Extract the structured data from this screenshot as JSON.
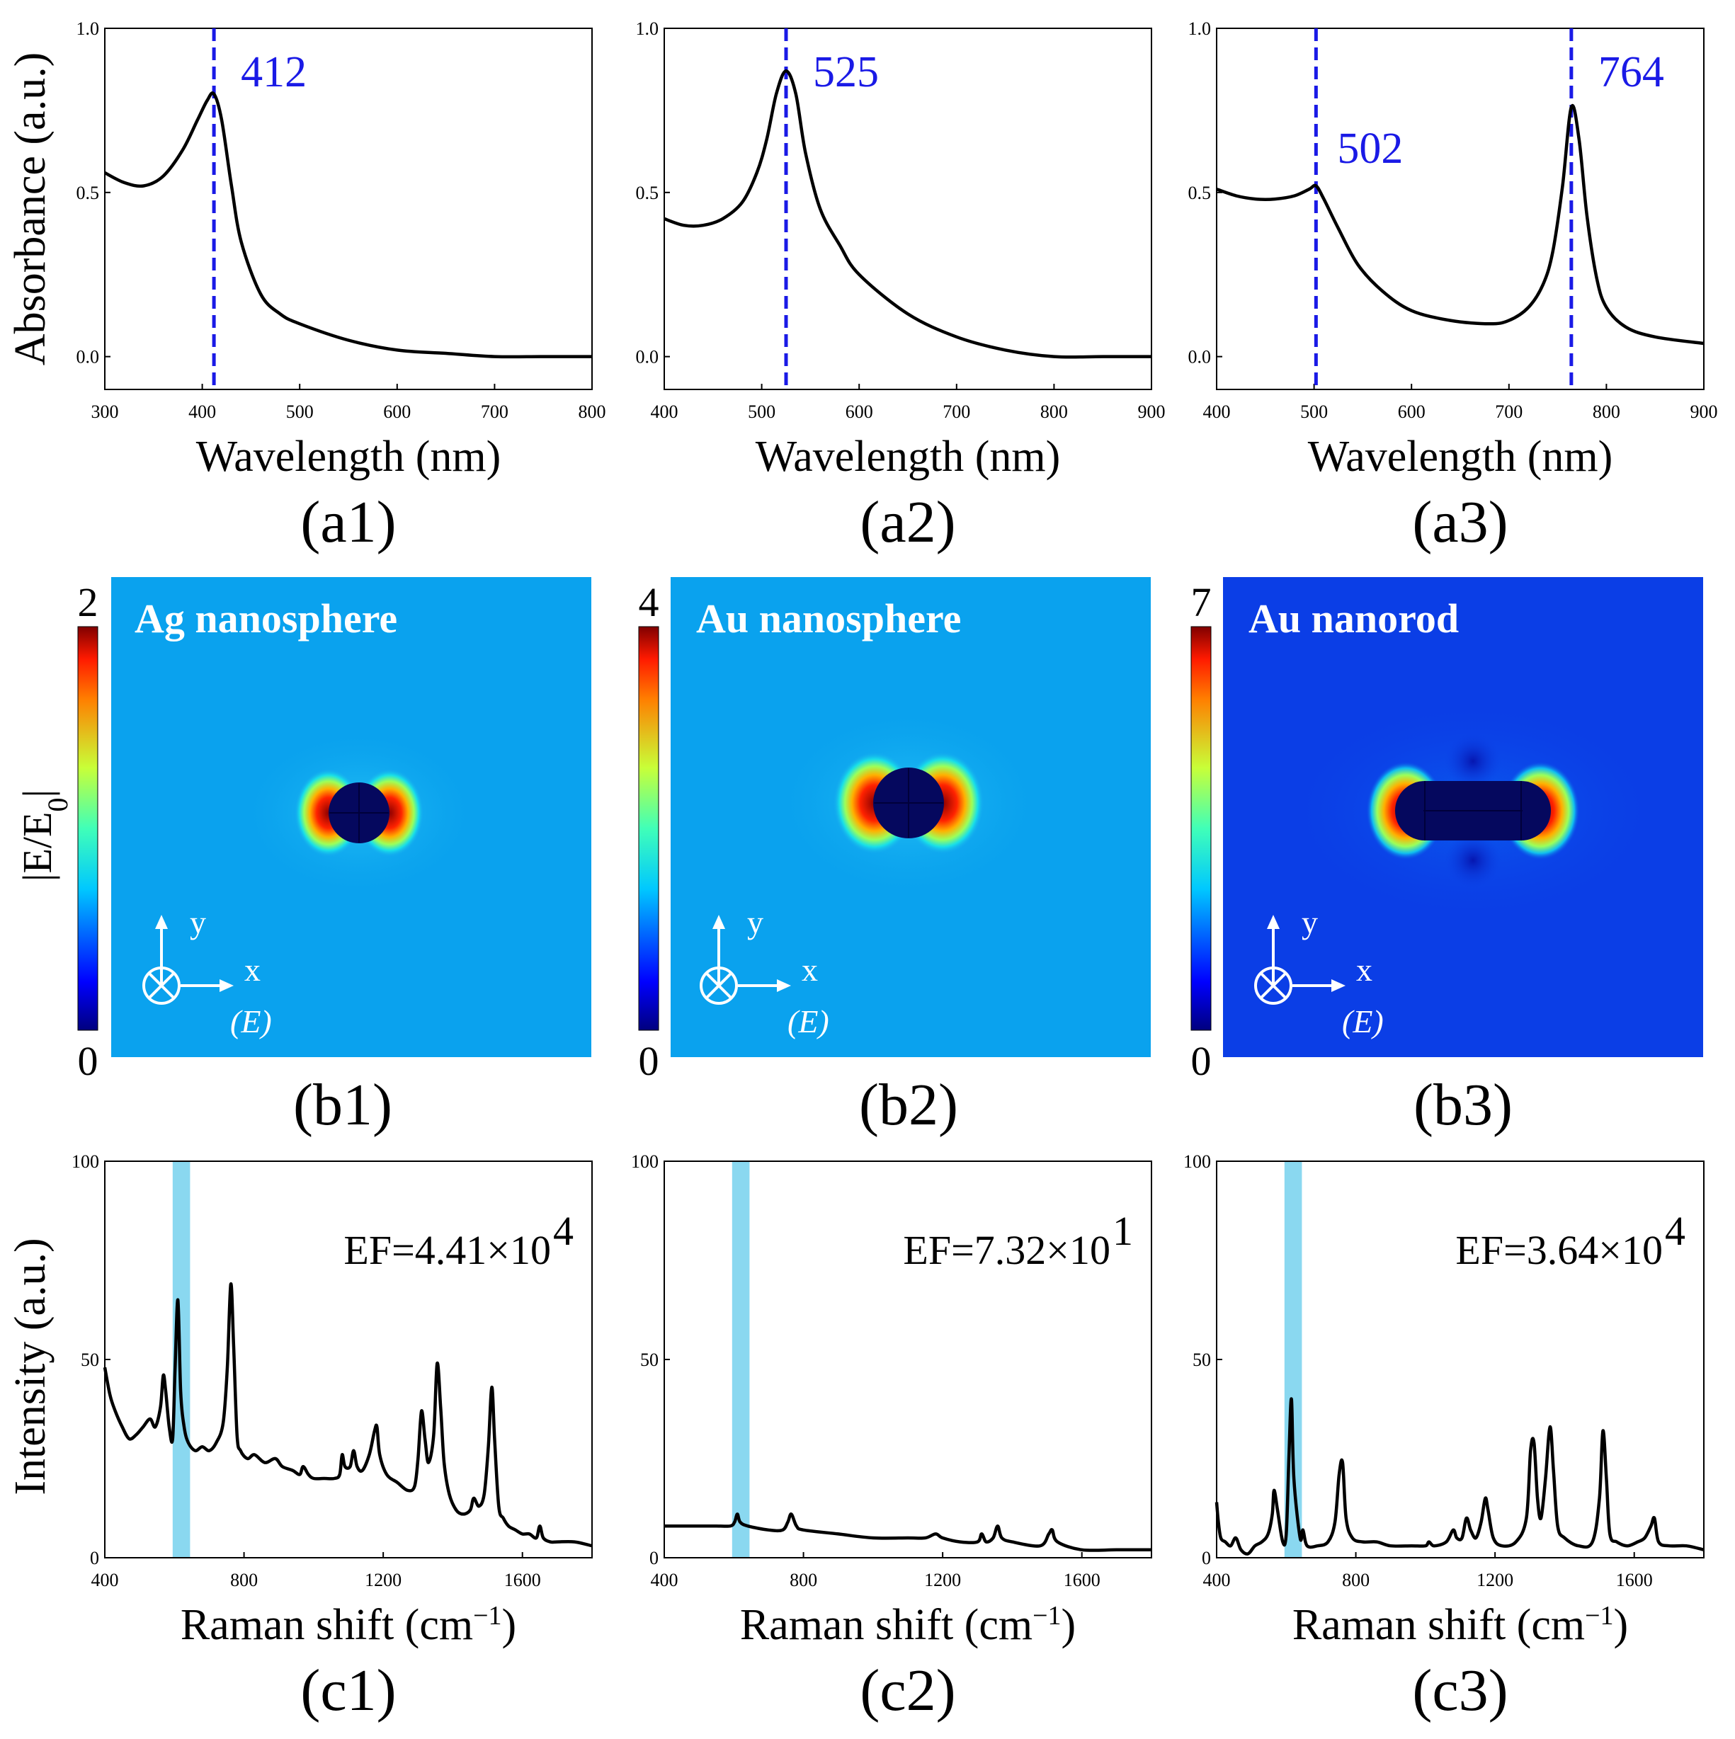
{
  "colors": {
    "peak_marker": "#1a1ae6",
    "band": "#8ad8f0",
    "curve": "#000000",
    "light_bg": "#0aa2ee",
    "dark_bg": "#0b3ee6"
  },
  "chart_data": [
    {
      "id": "a1",
      "type": "line",
      "panel_label": "(a1)",
      "xlabel": "Wavelength  (nm)",
      "ylabel": "Absorbance (a.u.)",
      "xlim": [
        300,
        800
      ],
      "ylim": [
        -0.1,
        1.0
      ],
      "xticks": [
        "300",
        "400",
        "500",
        "600",
        "700",
        "800"
      ],
      "yticks": [
        "0.0",
        "0.5",
        "1.0"
      ],
      "peaks": [
        {
          "x": 412,
          "label": "412"
        }
      ],
      "x": [
        300,
        320,
        340,
        360,
        380,
        395,
        405,
        412,
        420,
        430,
        440,
        460,
        480,
        500,
        550,
        600,
        650,
        700,
        750,
        800
      ],
      "y": [
        0.56,
        0.53,
        0.52,
        0.55,
        0.63,
        0.72,
        0.78,
        0.8,
        0.72,
        0.52,
        0.35,
        0.19,
        0.13,
        0.1,
        0.05,
        0.02,
        0.01,
        0.0,
        0.0,
        0.0
      ]
    },
    {
      "id": "a2",
      "type": "line",
      "panel_label": "(a2)",
      "xlabel": "Wavelength  (nm)",
      "ylabel": "",
      "xlim": [
        400,
        900
      ],
      "ylim": [
        -0.1,
        1.0
      ],
      "xticks": [
        "400",
        "500",
        "600",
        "700",
        "800",
        "900"
      ],
      "yticks": [
        "0.0",
        "0.5",
        "1.0"
      ],
      "peaks": [
        {
          "x": 525,
          "label": "525"
        }
      ],
      "x": [
        400,
        420,
        440,
        460,
        480,
        495,
        505,
        515,
        525,
        535,
        545,
        560,
        580,
        600,
        650,
        700,
        750,
        800,
        850,
        900
      ],
      "y": [
        0.42,
        0.4,
        0.4,
        0.42,
        0.47,
        0.56,
        0.66,
        0.8,
        0.87,
        0.8,
        0.62,
        0.45,
        0.34,
        0.25,
        0.13,
        0.06,
        0.02,
        0.0,
        0.0,
        0.0
      ]
    },
    {
      "id": "a3",
      "type": "line",
      "panel_label": "(a3)",
      "xlabel": "Wavelength  (nm)",
      "ylabel": "",
      "xlim": [
        400,
        900
      ],
      "ylim": [
        -0.1,
        1.0
      ],
      "xticks": [
        "400",
        "500",
        "600",
        "700",
        "800",
        "900"
      ],
      "yticks": [
        "0.0",
        "0.5",
        "1.0"
      ],
      "peaks": [
        {
          "x": 502,
          "label": "502"
        },
        {
          "x": 764,
          "label": "764"
        }
      ],
      "x": [
        400,
        420,
        440,
        460,
        480,
        495,
        502,
        510,
        525,
        545,
        570,
        600,
        640,
        680,
        700,
        720,
        735,
        745,
        755,
        764,
        772,
        780,
        790,
        800,
        820,
        850,
        900
      ],
      "y": [
        0.51,
        0.49,
        0.48,
        0.48,
        0.49,
        0.51,
        0.52,
        0.48,
        0.39,
        0.28,
        0.2,
        0.14,
        0.11,
        0.1,
        0.11,
        0.15,
        0.22,
        0.32,
        0.52,
        0.76,
        0.66,
        0.43,
        0.24,
        0.15,
        0.09,
        0.06,
        0.04
      ]
    },
    {
      "id": "c1",
      "type": "line",
      "panel_label": "(c1)",
      "xlabel": "Raman shift (cm",
      "xlabel_sup": "−1",
      "xlabel_end": ")",
      "ylabel": "Intensity (a.u.)",
      "xlim": [
        400,
        1800
      ],
      "ylim": [
        0,
        100
      ],
      "xticks": [
        "400",
        "800",
        "1200",
        "1600"
      ],
      "xtick_values": [
        400,
        800,
        1200,
        1600
      ],
      "yticks": [
        "0",
        "50",
        "100"
      ],
      "highlight_band": [
        595,
        645
      ],
      "ef_text": "EF=4.41×10",
      "ef_exp": "4",
      "x": [
        400,
        415,
        430,
        450,
        470,
        490,
        510,
        530,
        545,
        560,
        568,
        575,
        585,
        595,
        602,
        610,
        618,
        628,
        640,
        660,
        680,
        700,
        720,
        740,
        752,
        762,
        770,
        780,
        790,
        810,
        830,
        860,
        890,
        910,
        940,
        960,
        970,
        985,
        1000,
        1030,
        1060,
        1075,
        1082,
        1090,
        1105,
        1115,
        1125,
        1140,
        1160,
        1175,
        1182,
        1190,
        1210,
        1240,
        1270,
        1290,
        1300,
        1310,
        1320,
        1330,
        1345,
        1355,
        1365,
        1375,
        1390,
        1410,
        1430,
        1450,
        1460,
        1475,
        1490,
        1502,
        1512,
        1520,
        1532,
        1545,
        1560,
        1580,
        1600,
        1620,
        1640,
        1650,
        1660,
        1680,
        1700,
        1750,
        1800
      ],
      "y": [
        48,
        41,
        37,
        33,
        30,
        31,
        33,
        35,
        33,
        38,
        46,
        42,
        33,
        30,
        48,
        65,
        42,
        33,
        29,
        27,
        28,
        27,
        29,
        34,
        48,
        69,
        54,
        31,
        27,
        25,
        26,
        24,
        25,
        23,
        22,
        21,
        23,
        21,
        20,
        20,
        20,
        21,
        26,
        23,
        23,
        27,
        23,
        22,
        26,
        32,
        33,
        26,
        21,
        19,
        17,
        18,
        25,
        37,
        30,
        24,
        31,
        49,
        38,
        24,
        16,
        12,
        11,
        12,
        15,
        13,
        16,
        28,
        43,
        30,
        13,
        10,
        8,
        7,
        6,
        6,
        5,
        8,
        5,
        4,
        4,
        4,
        3
      ]
    },
    {
      "id": "c2",
      "type": "line",
      "panel_label": "(c2)",
      "xlabel": "Raman shift (cm",
      "xlabel_sup": "−1",
      "xlabel_end": ")",
      "ylabel": "",
      "xlim": [
        400,
        1800
      ],
      "ylim": [
        0,
        100
      ],
      "xticks": [
        "400",
        "800",
        "1200",
        "1600"
      ],
      "xtick_values": [
        400,
        800,
        1200,
        1600
      ],
      "yticks": [
        "0",
        "50",
        "100"
      ],
      "highlight_band": [
        595,
        645
      ],
      "ef_text": "EF=7.32×10",
      "ef_exp": "1",
      "x": [
        400,
        450,
        500,
        550,
        590,
        602,
        610,
        618,
        640,
        700,
        740,
        755,
        765,
        780,
        800,
        900,
        1000,
        1100,
        1150,
        1180,
        1200,
        1250,
        1300,
        1312,
        1325,
        1345,
        1358,
        1370,
        1400,
        1480,
        1505,
        1515,
        1530,
        1600,
        1700,
        1800
      ],
      "y": [
        8,
        8,
        8,
        8,
        8,
        9,
        11,
        9,
        8,
        7,
        7,
        9,
        11,
        8,
        7,
        6,
        5,
        5,
        5,
        6,
        5,
        4,
        4,
        6,
        4,
        5,
        8,
        5,
        4,
        3,
        6,
        7,
        4,
        2,
        2,
        2
      ]
    },
    {
      "id": "c3",
      "type": "line",
      "panel_label": "(c3)",
      "xlabel": "Raman shift (cm",
      "xlabel_sup": "−1",
      "xlabel_end": ")",
      "ylabel": "",
      "xlim": [
        400,
        1800
      ],
      "ylim": [
        0,
        100
      ],
      "xticks": [
        "400",
        "800",
        "1200",
        "1600"
      ],
      "xtick_values": [
        400,
        800,
        1200,
        1600
      ],
      "yticks": [
        "0",
        "50",
        "100"
      ],
      "highlight_band": [
        595,
        645
      ],
      "ef_text": "EF=3.64×10",
      "ef_exp": "4",
      "x": [
        400,
        405,
        412,
        425,
        440,
        455,
        470,
        490,
        510,
        530,
        548,
        560,
        565,
        575,
        590,
        600,
        608,
        615,
        622,
        640,
        648,
        660,
        690,
        720,
        740,
        752,
        762,
        772,
        790,
        820,
        860,
        900,
        960,
        1000,
        1010,
        1025,
        1060,
        1080,
        1090,
        1105,
        1118,
        1130,
        1145,
        1160,
        1172,
        1180,
        1195,
        1220,
        1260,
        1290,
        1302,
        1312,
        1322,
        1332,
        1345,
        1358,
        1368,
        1380,
        1400,
        1440,
        1480,
        1500,
        1510,
        1520,
        1530,
        1550,
        1580,
        1610,
        1630,
        1648,
        1658,
        1670,
        1700,
        1750,
        1800
      ],
      "y": [
        14,
        9,
        5,
        4,
        3,
        5,
        2,
        1,
        3,
        4,
        6,
        11,
        17,
        12,
        4,
        6,
        26,
        40,
        20,
        5,
        7,
        3,
        3,
        4,
        9,
        21,
        24,
        10,
        5,
        4,
        4,
        3,
        3,
        3,
        4,
        3,
        4,
        7,
        5,
        5,
        10,
        7,
        5,
        9,
        15,
        12,
        5,
        3,
        4,
        10,
        27,
        29,
        15,
        10,
        20,
        33,
        22,
        8,
        5,
        3,
        4,
        15,
        32,
        20,
        6,
        4,
        3,
        4,
        5,
        8,
        10,
        4,
        3,
        3,
        2
      ]
    }
  ],
  "field_maps": [
    {
      "id": "b1",
      "title": "Ag nanosphere",
      "panel_label": "(b1)",
      "cbar_max": "2",
      "cbar_min": "0",
      "cbar_title": "|E/E",
      "cbar_title_sub": "0",
      "cbar_title_end": "|",
      "axis_y": "y",
      "axis_x": "x",
      "axis_e": "(E)"
    },
    {
      "id": "b2",
      "title": "Au nanosphere",
      "panel_label": "(b2)",
      "cbar_max": "4",
      "cbar_min": "0",
      "axis_y": "y",
      "axis_x": "x",
      "axis_e": "(E)"
    },
    {
      "id": "b3",
      "title": "Au nanorod",
      "panel_label": "(b3)",
      "cbar_max": "7",
      "cbar_min": "0",
      "axis_y": "y",
      "axis_x": "x",
      "axis_e": "(E)"
    }
  ]
}
